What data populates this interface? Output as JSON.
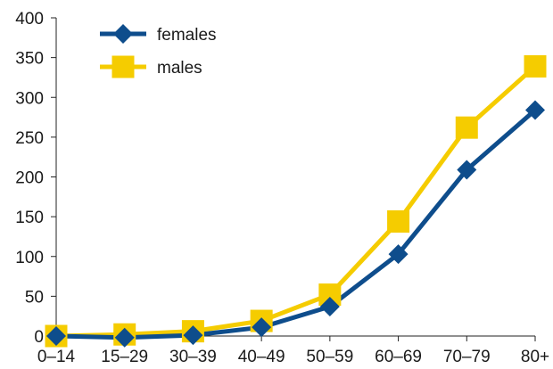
{
  "chart_data": {
    "type": "line",
    "title": "",
    "xlabel": "",
    "ylabel": "",
    "categories": [
      "0–14",
      "15–29",
      "30–39",
      "40–49",
      "50–59",
      "60–69",
      "70–79",
      "80+"
    ],
    "ylim": [
      0,
      400
    ],
    "yticks": [
      0,
      50,
      100,
      150,
      200,
      250,
      300,
      350,
      400
    ],
    "grid": false,
    "legend_position": "top-left",
    "series": [
      {
        "name": "females",
        "color": "#0e4d8c",
        "marker": "diamond",
        "values": [
          0,
          -2,
          1,
          11,
          37,
          103,
          209,
          284
        ]
      },
      {
        "name": "males",
        "color": "#f5cc00",
        "marker": "square",
        "values": [
          0,
          2,
          6,
          19,
          52,
          144,
          262,
          339
        ]
      }
    ]
  }
}
